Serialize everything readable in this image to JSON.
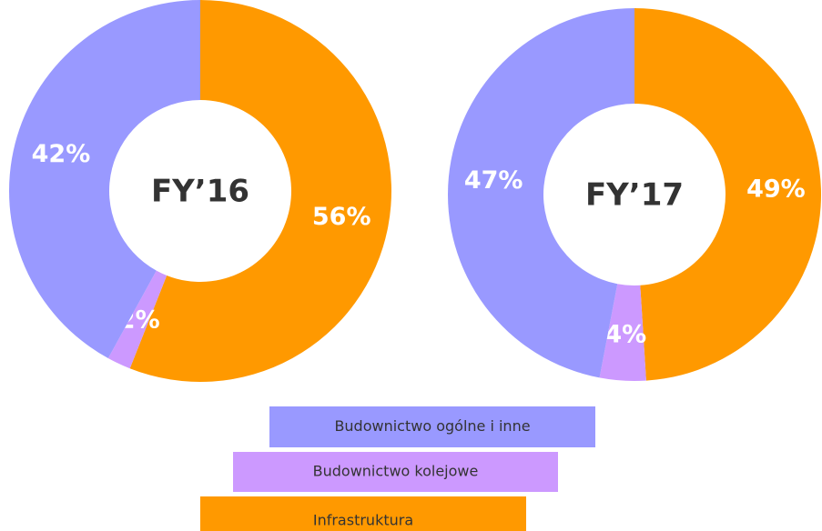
{
  "chart_data": [
    {
      "type": "pie",
      "title": "FY’16",
      "categories": [
        "Infrastruktura",
        "Budownictwo kolejowe",
        "Budownictwo ogólne i inne"
      ],
      "values": [
        56,
        2,
        42
      ],
      "value_labels": [
        "56%",
        "2%",
        "42%"
      ],
      "colors": [
        "#ff9900",
        "#cc99ff",
        "#9999ff"
      ]
    },
    {
      "type": "pie",
      "title": "FY’17",
      "values": [
        49,
        4,
        47
      ],
      "value_labels": [
        "49%",
        "4%",
        "47%"
      ],
      "colors": [
        "#ff9900",
        "#cc99ff",
        "#9999ff"
      ]
    }
  ]
}
